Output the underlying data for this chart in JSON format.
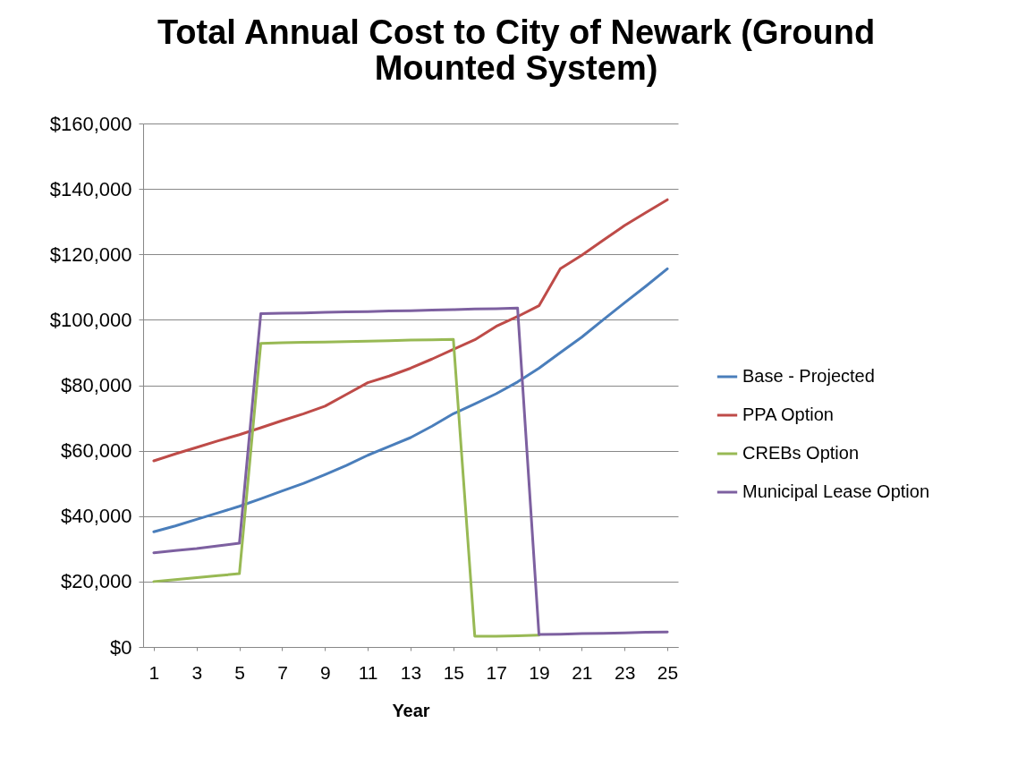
{
  "chart_data": {
    "type": "line",
    "title": "Total Annual Cost to City of Newark (Ground Mounted System)",
    "xlabel": "Year",
    "x": [
      1,
      2,
      3,
      4,
      5,
      6,
      7,
      8,
      9,
      10,
      11,
      12,
      13,
      14,
      15,
      16,
      17,
      18,
      19,
      20,
      21,
      22,
      23,
      24,
      25
    ],
    "xlim": [
      0.5,
      25.5
    ],
    "xticks": [
      1,
      3,
      5,
      7,
      9,
      11,
      13,
      15,
      17,
      19,
      21,
      23,
      25
    ],
    "ylim": [
      0,
      160000
    ],
    "yticks": [
      {
        "value": 0,
        "label": "$0"
      },
      {
        "value": 20000,
        "label": "$20,000"
      },
      {
        "value": 40000,
        "label": "$40,000"
      },
      {
        "value": 60000,
        "label": "$60,000"
      },
      {
        "value": 80000,
        "label": "$80,000"
      },
      {
        "value": 100000,
        "label": "$100,000"
      },
      {
        "value": 120000,
        "label": "$120,000"
      },
      {
        "value": 140000,
        "label": "$140,000"
      },
      {
        "value": 160000,
        "label": "$160,000"
      }
    ],
    "grid": "y",
    "legend": "right",
    "marker": "none",
    "line_style": "solid",
    "series": [
      {
        "name": "Base - Projected",
        "color": "#4a7ebb",
        "values": [
          35200,
          37000,
          39000,
          41000,
          43000,
          45300,
          47700,
          50000,
          52700,
          55500,
          58600,
          61300,
          64000,
          67500,
          71300,
          74300,
          77400,
          81000,
          85200,
          90000,
          94700,
          100000,
          105200,
          110300,
          115600
        ]
      },
      {
        "name": "PPA Option",
        "color": "#be4b48",
        "values": [
          56900,
          59000,
          61000,
          63000,
          64900,
          67000,
          69200,
          71300,
          73600,
          77200,
          80800,
          82800,
          85200,
          88000,
          91000,
          93900,
          98000,
          101000,
          104300,
          115600,
          119700,
          124300,
          128800,
          132800,
          136700
        ]
      },
      {
        "name": "CREBs Option",
        "color": "#98b954",
        "values": [
          20000,
          20600,
          21200,
          21800,
          22400,
          92800,
          93000,
          93100,
          93200,
          93300,
          93500,
          93600,
          93800,
          93900,
          94000,
          3300,
          3300,
          3400,
          3600,
          null,
          null,
          null,
          null,
          null,
          null
        ]
      },
      {
        "name": "Municipal Lease Option",
        "color": "#7d60a0",
        "values": [
          28800,
          29500,
          30100,
          30900,
          31700,
          101900,
          102000,
          102100,
          102300,
          102400,
          102500,
          102700,
          102800,
          103000,
          103100,
          103300,
          103400,
          103600,
          3800,
          3900,
          4100,
          4200,
          4300,
          4500,
          4600
        ]
      }
    ]
  }
}
